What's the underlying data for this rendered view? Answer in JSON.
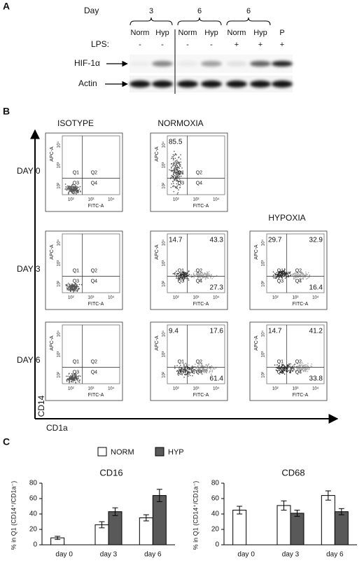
{
  "panel_labels": [
    "A",
    "B",
    "C"
  ],
  "blot": {
    "day_label": "Day",
    "days": [
      "3",
      "6",
      "6"
    ],
    "conditions": [
      "Norm",
      "Hyp",
      "Norm",
      "Hyp",
      "Norm",
      "Hyp",
      "P"
    ],
    "lps_label": "LPS:",
    "lps": [
      "-",
      "-",
      "-",
      "-",
      "+",
      "+",
      "+"
    ],
    "rows": [
      "HIF-1α",
      "Actin"
    ]
  },
  "flow": {
    "columns": [
      "ISOTYPE",
      "NORMOXIA",
      "HYPOXIA"
    ],
    "rows": [
      "DAY 0",
      "DAY 3",
      "DAY 6"
    ],
    "y_marker": "CD14",
    "x_marker": "CD1a",
    "x_axis": "FITC-A",
    "y_axis": "APC-A",
    "ticks": [
      "10²",
      "10³",
      "10⁴"
    ],
    "quadrants": [
      "Q1",
      "Q2",
      "Q3",
      "Q4"
    ],
    "plots": [
      [
        {},
        {
          "q1": 85.5
        }
      ],
      [
        {},
        {
          "q1": 14.7,
          "q2": 43.3,
          "q4": 27.3
        },
        {
          "q1": 29.7,
          "q2": 32.9,
          "q4": 16.4
        }
      ],
      [
        {},
        {
          "q1": 9.4,
          "q2": 17.6,
          "q4": 61.4
        },
        {
          "q1": 14.7,
          "q2": 41.2,
          "q4": 33.8
        }
      ]
    ]
  },
  "chart_data": [
    {
      "type": "bar",
      "title": "CD16",
      "y_label": "% in Q1 (CD14⁺/CD1a⁻)",
      "categories": [
        "day 0",
        "day 3",
        "day 6"
      ],
      "series": [
        {
          "name": "NORM",
          "color": "#ffffff",
          "values": [
            9,
            26,
            35
          ],
          "errors": [
            2,
            4,
            4
          ]
        },
        {
          "name": "HYP",
          "color": "#595959",
          "values": [
            null,
            43,
            64
          ],
          "errors": [
            null,
            5,
            8
          ]
        }
      ],
      "ylim": [
        0,
        80
      ],
      "yticks": [
        0,
        20,
        40,
        60,
        80
      ]
    },
    {
      "type": "bar",
      "title": "CD68",
      "y_label": "% in Q1 (CD14⁺/CD1a⁻)",
      "categories": [
        "day 0",
        "day 3",
        "day 6"
      ],
      "series": [
        {
          "name": "NORM",
          "color": "#ffffff",
          "values": [
            45,
            51,
            64
          ],
          "errors": [
            5,
            6,
            6
          ]
        },
        {
          "name": "HYP",
          "color": "#595959",
          "values": [
            null,
            41,
            43
          ],
          "errors": [
            null,
            4,
            4
          ]
        }
      ],
      "ylim": [
        0,
        80
      ],
      "yticks": [
        0,
        20,
        40,
        60,
        80
      ]
    }
  ]
}
